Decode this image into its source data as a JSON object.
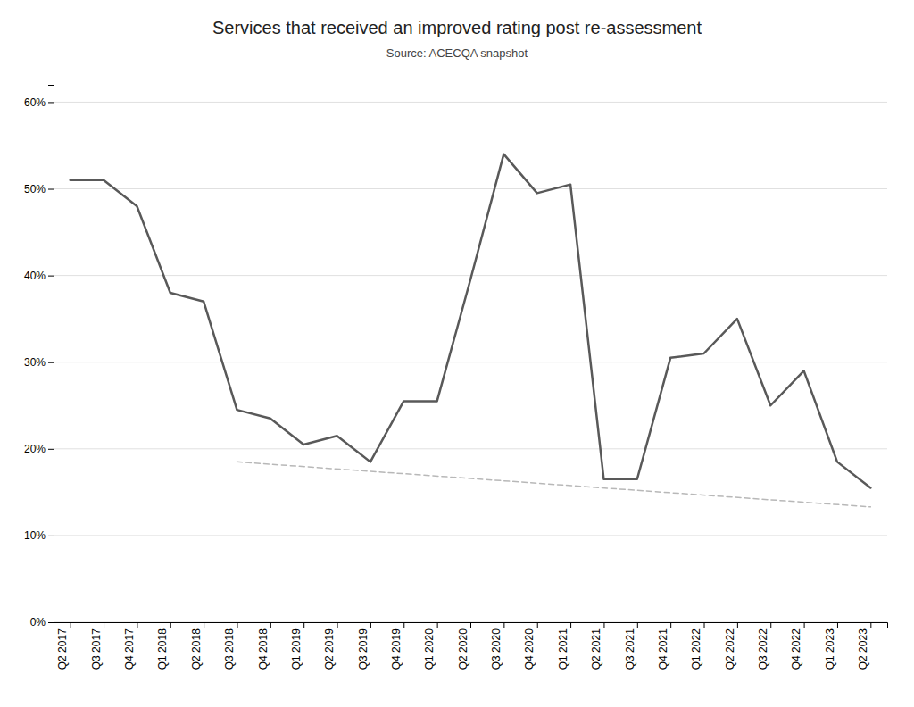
{
  "chart_data": {
    "type": "line",
    "title": "Services that received an improved rating post re-assessment",
    "subtitle": "Source: ACECQA snapshot",
    "categories": [
      "Q2 2017",
      "Q3 2017",
      "Q4 2017",
      "Q1 2018",
      "Q2 2018",
      "Q3 2018",
      "Q4 2018",
      "Q1 2019",
      "Q2 2019",
      "Q3 2019",
      "Q4 2019",
      "Q1 2020",
      "Q2 2020",
      "Q3 2020",
      "Q4 2020",
      "Q1 2021",
      "Q2 2021",
      "Q3 2021",
      "Q4 2021",
      "Q1 2022",
      "Q2 2022",
      "Q3 2022",
      "Q4 2022",
      "Q1 2023",
      "Q2 2023"
    ],
    "series": [
      {
        "color": "#595959",
        "line_style": "solid",
        "values": [
          0.51,
          0.51,
          0.48,
          0.38,
          0.37,
          0.245,
          0.235,
          0.205,
          0.215,
          0.185,
          0.255,
          0.255,
          0.395,
          0.54,
          0.495,
          0.505,
          0.165,
          0.165,
          0.305,
          0.31,
          0.35,
          0.25,
          0.29,
          0.185,
          0.155
        ]
      },
      {
        "color": "#b8b8b8",
        "line_style": "dashed",
        "values": [
          null,
          null,
          null,
          null,
          null,
          0.185,
          null,
          null,
          null,
          null,
          null,
          null,
          null,
          null,
          null,
          null,
          null,
          null,
          null,
          null,
          null,
          null,
          null,
          null,
          0.133
        ]
      }
    ],
    "ylim": [
      0,
      0.62
    ],
    "yticks": [
      {
        "value": 0,
        "label": "0%"
      },
      {
        "value": 0.1,
        "label": "10%"
      },
      {
        "value": 0.2,
        "label": "20%"
      },
      {
        "value": 0.3,
        "label": "30%"
      },
      {
        "value": 0.4,
        "label": "40%"
      },
      {
        "value": 0.5,
        "label": "50%"
      },
      {
        "value": 0.6,
        "label": "60%"
      }
    ],
    "grid": true
  }
}
